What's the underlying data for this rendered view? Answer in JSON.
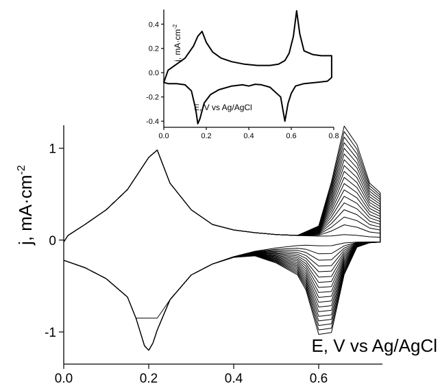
{
  "chart_data": [
    {
      "id": "main",
      "type": "line",
      "title": "",
      "xlabel": "E, V vs Ag/AgCl",
      "ylabel": "j, mA·cm",
      "ylabel_sup": "-2",
      "xlim": [
        0.0,
        0.75
      ],
      "ylim": [
        -1.35,
        1.25
      ],
      "xticks": [
        0.0,
        0.2,
        0.4,
        0.6
      ],
      "xtick_labels": [
        "0.0",
        "0.2",
        "0.4",
        "0.6"
      ],
      "yticks": [
        -1,
        0,
        1
      ],
      "ytick_labels": [
        "-1",
        "0",
        "1"
      ],
      "series": [
        {
          "style": "voltammogram-cycles",
          "cycle_count": 18,
          "anodic_x": [
            0.0,
            0.01,
            0.05,
            0.1,
            0.15,
            0.2,
            0.22,
            0.25,
            0.3,
            0.35,
            0.4,
            0.45,
            0.5,
            0.55,
            0.6,
            0.63,
            0.66,
            0.69,
            0.72,
            0.745
          ],
          "anodic_base_y": [
            -0.02,
            0.05,
            0.17,
            0.33,
            0.55,
            0.9,
            0.98,
            0.62,
            0.33,
            0.17,
            0.11,
            0.08,
            0.06,
            0.05,
            0.04,
            0.03,
            0.03,
            0.03,
            0.03,
            0.03
          ],
          "anodic_peak_first": 0.03,
          "anodic_peak_last": 1.18,
          "cathodic_x": [
            0.745,
            0.72,
            0.69,
            0.66,
            0.63,
            0.6,
            0.57,
            0.55,
            0.5,
            0.45,
            0.4,
            0.35,
            0.3,
            0.25,
            0.22,
            0.21,
            0.2,
            0.19,
            0.17,
            0.15,
            0.1,
            0.05,
            0.0
          ],
          "cathodic_base_y": [
            -0.02,
            -0.02,
            -0.02,
            -0.02,
            -0.03,
            -0.03,
            -0.04,
            -0.05,
            -0.08,
            -0.12,
            -0.18,
            -0.26,
            -0.38,
            -0.65,
            -0.98,
            -1.12,
            -1.2,
            -1.15,
            -0.85,
            -0.62,
            -0.42,
            -0.3,
            -0.22
          ],
          "cathodic_peak_first": -0.03,
          "cathodic_peak_last": -0.93,
          "first_cycle_trough": -0.85
        }
      ]
    },
    {
      "id": "inset",
      "type": "line",
      "title": "",
      "xlabel": "E, V vs Ag/AgCl",
      "ylabel": "j, mA·cm",
      "ylabel_sup": "-2",
      "xlim": [
        0.0,
        0.8
      ],
      "ylim": [
        -0.45,
        0.52
      ],
      "xticks": [
        0.0,
        0.2,
        0.4,
        0.6,
        0.8
      ],
      "xtick_labels": [
        "0.0",
        "0.2",
        "0.4",
        "0.6",
        "0.8"
      ],
      "yticks": [
        -0.4,
        -0.2,
        0.0,
        0.2,
        0.4
      ],
      "ytick_labels": [
        "-0.4",
        "-0.2",
        "0.0",
        "0.2",
        "0.4"
      ],
      "series": [
        {
          "x": [
            0.0,
            0.02,
            0.06,
            0.1,
            0.14,
            0.16,
            0.18,
            0.2,
            0.23,
            0.27,
            0.32,
            0.38,
            0.44,
            0.5,
            0.54,
            0.57,
            0.59,
            0.61,
            0.625,
            0.64,
            0.66,
            0.7,
            0.74,
            0.77,
            0.79,
            0.79,
            0.77,
            0.72,
            0.66,
            0.62,
            0.6,
            0.585,
            0.57,
            0.55,
            0.5,
            0.46,
            0.43,
            0.4,
            0.37,
            0.32,
            0.26,
            0.22,
            0.19,
            0.17,
            0.16,
            0.15,
            0.13,
            0.1,
            0.06,
            0.02,
            0.0
          ],
          "y": [
            -0.08,
            0.02,
            0.07,
            0.12,
            0.22,
            0.3,
            0.34,
            0.25,
            0.17,
            0.12,
            0.09,
            0.07,
            0.06,
            0.06,
            0.07,
            0.1,
            0.16,
            0.3,
            0.51,
            0.32,
            0.18,
            0.15,
            0.14,
            0.14,
            0.14,
            -0.04,
            -0.07,
            -0.08,
            -0.09,
            -0.11,
            -0.17,
            -0.25,
            -0.4,
            -0.2,
            -0.12,
            -0.1,
            -0.095,
            -0.11,
            -0.1,
            -0.11,
            -0.14,
            -0.18,
            -0.25,
            -0.38,
            -0.42,
            -0.3,
            -0.15,
            -0.1,
            -0.09,
            -0.09,
            -0.08
          ]
        }
      ]
    }
  ]
}
